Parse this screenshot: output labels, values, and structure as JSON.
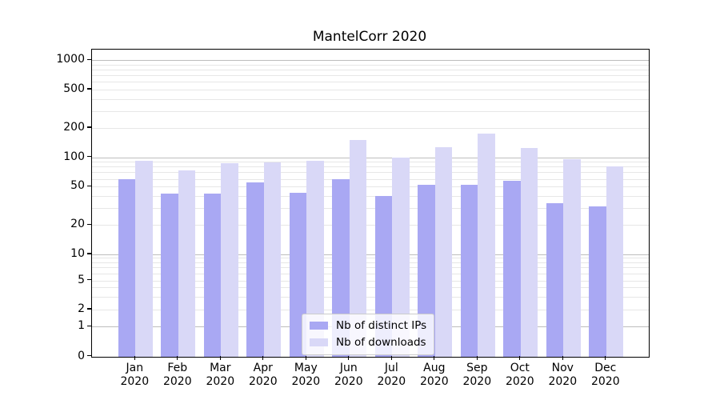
{
  "chart_data": {
    "type": "bar",
    "title": "MantelCorr 2020",
    "categories": [
      "Jan",
      "Feb",
      "Mar",
      "Apr",
      "May",
      "Jun",
      "Jul",
      "Aug",
      "Sep",
      "Oct",
      "Nov",
      "Dec"
    ],
    "year_label": "2020",
    "series": [
      {
        "name": "Nb of distinct IPs",
        "color": "#a9a8f3",
        "values": [
          59,
          42,
          42,
          55,
          43,
          59,
          40,
          52,
          52,
          57,
          34,
          31
        ]
      },
      {
        "name": "Nb of downloads",
        "color": "#d9d8f7",
        "values": [
          93,
          73,
          87,
          88,
          93,
          152,
          100,
          127,
          177,
          125,
          96,
          80
        ]
      }
    ],
    "xlabel": "",
    "ylabel": "",
    "yscale": "symlog",
    "yticks": [
      0,
      1,
      2,
      5,
      10,
      20,
      50,
      100,
      200,
      500,
      1000
    ],
    "ylim": [
      0,
      1300
    ],
    "grid": {
      "major_lines": [
        1,
        10,
        100,
        1000
      ],
      "minor_multipliers": [
        2,
        3,
        4,
        5,
        6,
        7,
        8,
        9
      ],
      "minor_decades": [
        1,
        10,
        100
      ]
    },
    "legend_position": "lower center",
    "grid_on": true,
    "colors": {
      "major_grid": "#bdbdbd",
      "minor_grid": "#e7e7e7",
      "axis": "#000000"
    }
  }
}
